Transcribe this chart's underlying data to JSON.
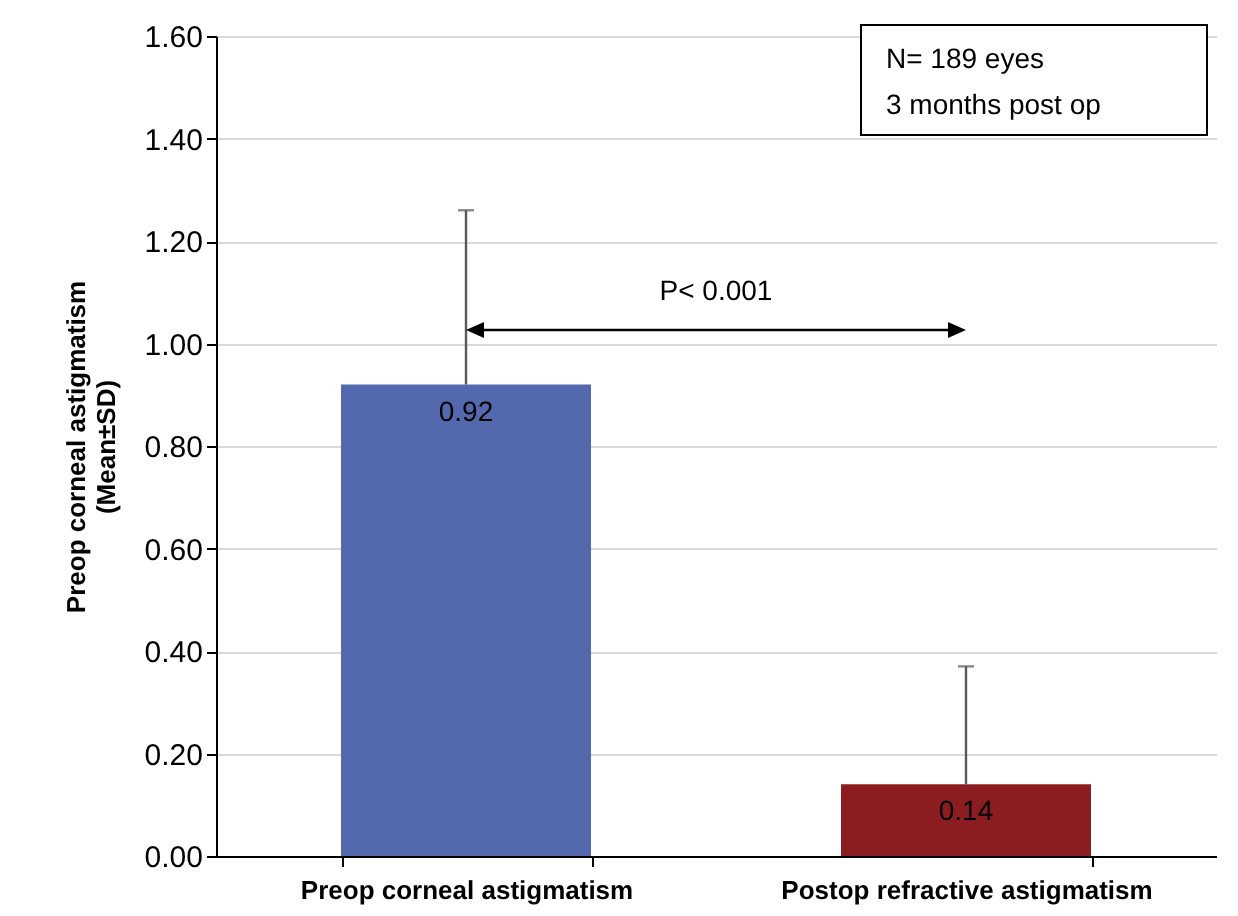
{
  "chart_data": {
    "type": "bar",
    "ylabel": "Preop corneal astigmatism\n(Mean±SD)",
    "categories": [
      "Preop corneal astigmatism",
      "Postop refractive astigmatism"
    ],
    "values": [
      0.92,
      0.14
    ],
    "colors": [
      "#5469ad",
      "#8b1c1f"
    ],
    "errors": [
      [
        0.92,
        1.26
      ],
      [
        0.14,
        0.37
      ]
    ],
    "data_labels": true,
    "ylim": [
      0,
      1.6
    ],
    "yticks": [
      {
        "value": 0,
        "label": "0.00"
      },
      {
        "value": 0.2,
        "label": "0.20"
      },
      {
        "value": 0.4,
        "label": "0.40"
      },
      {
        "value": 0.6,
        "label": "0.60"
      },
      {
        "value": 0.8,
        "label": "0.80"
      },
      {
        "value": 1,
        "label": "1.00"
      },
      {
        "value": 1.2,
        "label": "1.20"
      },
      {
        "value": 1.4,
        "label": "1.40"
      },
      {
        "value": 1.6,
        "label": "1.60"
      }
    ],
    "grid": "y",
    "annotations": [
      "N= 189 eyes",
      "3 months post op",
      "P< 0.001"
    ]
  }
}
